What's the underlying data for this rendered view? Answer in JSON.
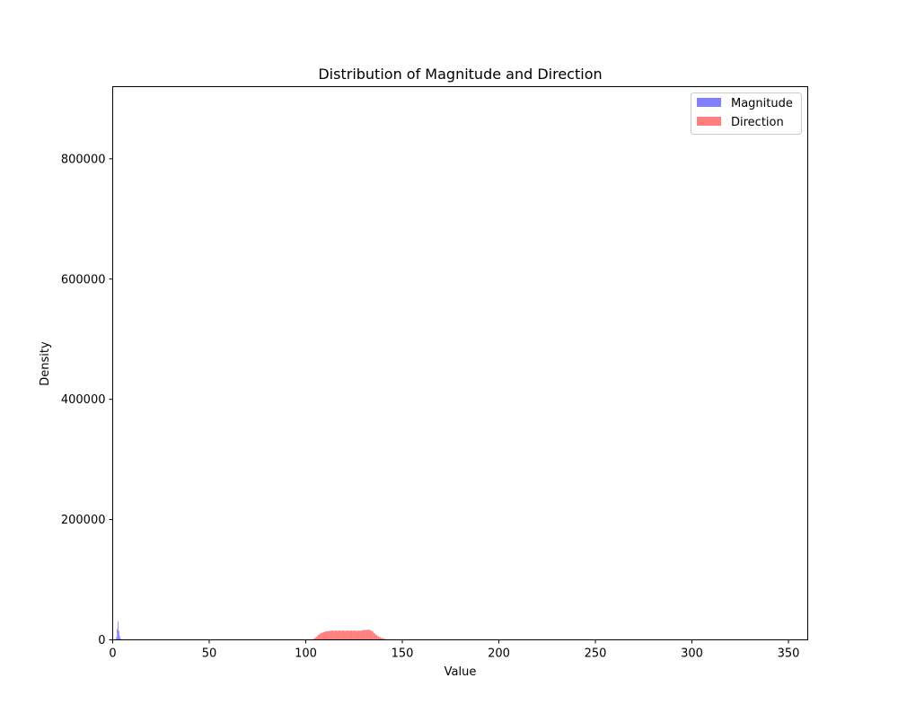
{
  "chart_data": {
    "type": "histogram",
    "title": "Distribution of Magnitude and Direction",
    "xlabel": "Value",
    "ylabel": "Density",
    "xlim": [
      0,
      360
    ],
    "ylim": [
      0,
      920000
    ],
    "xticks": [
      0,
      50,
      100,
      150,
      200,
      250,
      300,
      350
    ],
    "yticks": [
      0,
      200000,
      400000,
      600000,
      800000
    ],
    "grid": false,
    "legend_position": "top-right",
    "series": [
      {
        "name": "Magnitude",
        "color": "#0000ff",
        "alpha": 0.5,
        "bins": [
          {
            "x0": 1.8,
            "x1": 2.2,
            "y": 4000
          },
          {
            "x0": 2.2,
            "x1": 2.6,
            "y": 18000
          },
          {
            "x0": 2.6,
            "x1": 3.0,
            "y": 31000
          },
          {
            "x0": 3.0,
            "x1": 3.4,
            "y": 15000
          },
          {
            "x0": 3.4,
            "x1": 3.8,
            "y": 6000
          },
          {
            "x0": 3.8,
            "x1": 4.4,
            "y": 2000
          }
        ]
      },
      {
        "name": "Direction",
        "color": "#ff0000",
        "alpha": 0.5,
        "bins": [
          {
            "x0": 103,
            "x1": 104,
            "y": 1000
          },
          {
            "x0": 104,
            "x1": 105,
            "y": 2500
          },
          {
            "x0": 105,
            "x1": 106,
            "y": 5000
          },
          {
            "x0": 106,
            "x1": 107,
            "y": 8000
          },
          {
            "x0": 107,
            "x1": 108,
            "y": 10500
          },
          {
            "x0": 108,
            "x1": 109,
            "y": 12000
          },
          {
            "x0": 109,
            "x1": 110,
            "y": 13000
          },
          {
            "x0": 110,
            "x1": 111,
            "y": 14000
          },
          {
            "x0": 111,
            "x1": 112,
            "y": 14500
          },
          {
            "x0": 112,
            "x1": 113,
            "y": 15000
          },
          {
            "x0": 113,
            "x1": 114,
            "y": 15500
          },
          {
            "x0": 114,
            "x1": 115,
            "y": 15000
          },
          {
            "x0": 115,
            "x1": 116,
            "y": 15500
          },
          {
            "x0": 116,
            "x1": 117,
            "y": 15000
          },
          {
            "x0": 117,
            "x1": 118,
            "y": 15500
          },
          {
            "x0": 118,
            "x1": 119,
            "y": 15000
          },
          {
            "x0": 119,
            "x1": 120,
            "y": 15500
          },
          {
            "x0": 120,
            "x1": 121,
            "y": 15000
          },
          {
            "x0": 121,
            "x1": 122,
            "y": 15500
          },
          {
            "x0": 122,
            "x1": 123,
            "y": 15000
          },
          {
            "x0": 123,
            "x1": 124,
            "y": 15500
          },
          {
            "x0": 124,
            "x1": 125,
            "y": 15000
          },
          {
            "x0": 125,
            "x1": 126,
            "y": 15500
          },
          {
            "x0": 126,
            "x1": 127,
            "y": 14800
          },
          {
            "x0": 127,
            "x1": 128,
            "y": 15500
          },
          {
            "x0": 128,
            "x1": 129,
            "y": 15200
          },
          {
            "x0": 129,
            "x1": 130,
            "y": 16000
          },
          {
            "x0": 130,
            "x1": 131,
            "y": 16500
          },
          {
            "x0": 131,
            "x1": 132,
            "y": 16500
          },
          {
            "x0": 132,
            "x1": 133,
            "y": 17000
          },
          {
            "x0": 133,
            "x1": 134,
            "y": 16000
          },
          {
            "x0": 134,
            "x1": 135,
            "y": 14000
          },
          {
            "x0": 135,
            "x1": 136,
            "y": 11000
          },
          {
            "x0": 136,
            "x1": 137,
            "y": 8000
          },
          {
            "x0": 137,
            "x1": 138,
            "y": 6000
          },
          {
            "x0": 138,
            "x1": 139,
            "y": 4500
          },
          {
            "x0": 139,
            "x1": 140,
            "y": 3000
          },
          {
            "x0": 140,
            "x1": 141,
            "y": 2000
          },
          {
            "x0": 141,
            "x1": 142,
            "y": 1000
          }
        ]
      }
    ]
  }
}
